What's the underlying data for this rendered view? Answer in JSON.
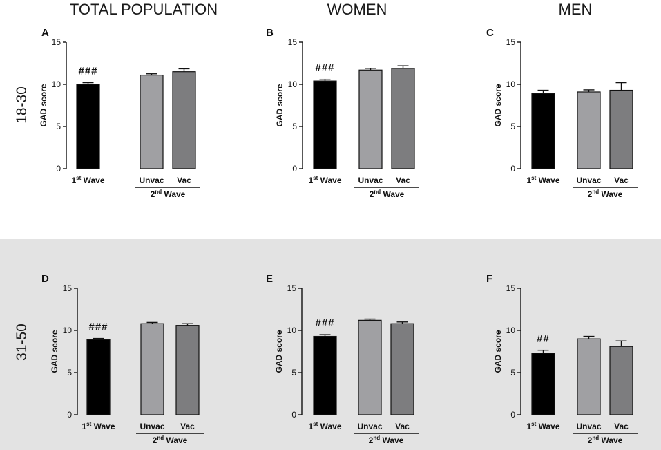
{
  "figure": {
    "column_titles": [
      "TOTAL POPULATION",
      "WOMEN",
      "MEN"
    ],
    "row_titles": [
      "18-30",
      "31-50"
    ],
    "colors": {
      "first_wave": "#000000",
      "unvac": "#a0a0a3",
      "vac": "#7d7d7f",
      "shaded_background": "#e3e3e3"
    }
  },
  "chart_data": [
    {
      "type": "bar",
      "panel": "A",
      "ylabel": "GAD score",
      "ylim": [
        0,
        15
      ],
      "yticks": [
        "0",
        "5",
        "10",
        "15"
      ],
      "categories": [
        {
          "main": "1",
          "sup": "st",
          "rest": " Wave"
        },
        {
          "main": "Unvac"
        },
        {
          "main": "Vac"
        }
      ],
      "group_label": {
        "main": "2",
        "sup": "nd",
        "rest": " Wave"
      },
      "values": [
        10.0,
        11.1,
        11.5
      ],
      "errors": [
        0.2,
        0.15,
        0.35
      ],
      "annotation": "###"
    },
    {
      "type": "bar",
      "panel": "B",
      "ylabel": "GAD score",
      "ylim": [
        0,
        15
      ],
      "yticks": [
        "0",
        "5",
        "10",
        "15"
      ],
      "categories": [
        {
          "main": "1",
          "sup": "st",
          "rest": " Wave"
        },
        {
          "main": "Unvac"
        },
        {
          "main": "Vac"
        }
      ],
      "group_label": {
        "main": "2",
        "sup": "nd",
        "rest": " Wave"
      },
      "values": [
        10.4,
        11.7,
        11.9
      ],
      "errors": [
        0.2,
        0.2,
        0.3
      ],
      "annotation": "###"
    },
    {
      "type": "bar",
      "panel": "C",
      "ylabel": "GAD score",
      "ylim": [
        0,
        15
      ],
      "yticks": [
        "0",
        "5",
        "10",
        "15"
      ],
      "categories": [
        {
          "main": "1",
          "sup": "st",
          "rest": " Wave"
        },
        {
          "main": "Unvac"
        },
        {
          "main": "Vac"
        }
      ],
      "group_label": {
        "main": "2",
        "sup": "nd",
        "rest": " Wave"
      },
      "values": [
        8.9,
        9.1,
        9.3
      ],
      "errors": [
        0.4,
        0.25,
        0.9
      ],
      "annotation": ""
    },
    {
      "type": "bar",
      "panel": "D",
      "ylabel": "GAD score",
      "ylim": [
        0,
        15
      ],
      "yticks": [
        "0",
        "5",
        "10",
        "15"
      ],
      "categories": [
        {
          "main": "1",
          "sup": "st",
          "rest": " Wave"
        },
        {
          "main": "Unvac"
        },
        {
          "main": "Vac"
        }
      ],
      "group_label": {
        "main": "2",
        "sup": "nd",
        "rest": " Wave"
      },
      "values": [
        8.9,
        10.8,
        10.6
      ],
      "errors": [
        0.15,
        0.15,
        0.2
      ],
      "annotation": "###"
    },
    {
      "type": "bar",
      "panel": "E",
      "ylabel": "GAD score",
      "ylim": [
        0,
        15
      ],
      "yticks": [
        "0",
        "5",
        "10",
        "15"
      ],
      "categories": [
        {
          "main": "1",
          "sup": "st",
          "rest": " Wave"
        },
        {
          "main": "Unvac"
        },
        {
          "main": "Vac"
        }
      ],
      "group_label": {
        "main": "2",
        "sup": "nd",
        "rest": " Wave"
      },
      "values": [
        9.3,
        11.2,
        10.8
      ],
      "errors": [
        0.2,
        0.15,
        0.2
      ],
      "annotation": "###"
    },
    {
      "type": "bar",
      "panel": "F",
      "ylabel": "GAD score",
      "ylim": [
        0,
        15
      ],
      "yticks": [
        "0",
        "5",
        "10",
        "15"
      ],
      "categories": [
        {
          "main": "1",
          "sup": "st",
          "rest": " Wave"
        },
        {
          "main": "Unvac"
        },
        {
          "main": "Vac"
        }
      ],
      "group_label": {
        "main": "2",
        "sup": "nd",
        "rest": " Wave"
      },
      "values": [
        7.3,
        9.0,
        8.1
      ],
      "errors": [
        0.35,
        0.3,
        0.65
      ],
      "annotation": "##"
    }
  ]
}
